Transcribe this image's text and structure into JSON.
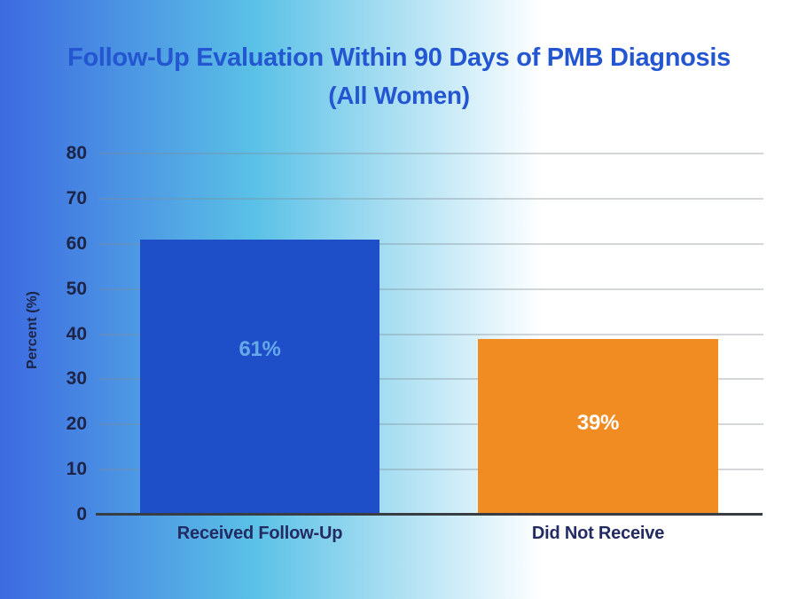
{
  "chart_data": {
    "type": "bar",
    "title": "Follow-Up Evaluation Within 90 Days of PMB Diagnosis",
    "subtitle": "(All Women)",
    "ylabel": "Percent (%)",
    "categories": [
      "Received Follow-Up",
      "Did Not Receive"
    ],
    "values": [
      61,
      39
    ],
    "bar_labels": [
      "61%",
      "39%"
    ],
    "bar_colors": [
      "#1e4fc8",
      "#f08c22"
    ],
    "bar_label_colors": [
      "#66a9e8",
      "#ffffff"
    ],
    "yticks": [
      0,
      10,
      20,
      30,
      40,
      50,
      60,
      70,
      80
    ],
    "ylim": [
      0,
      80
    ],
    "grid": true,
    "legend": "none"
  },
  "colors": {
    "title": "#2356d0",
    "tick_text": "#1d2446",
    "category_text": "#232b63",
    "gridline": "rgba(130,140,150,0.35)",
    "axis_line": "#383d44",
    "bg_gradient": [
      "#3d6ae1",
      "#5bc1e6",
      "#ffffff"
    ]
  }
}
